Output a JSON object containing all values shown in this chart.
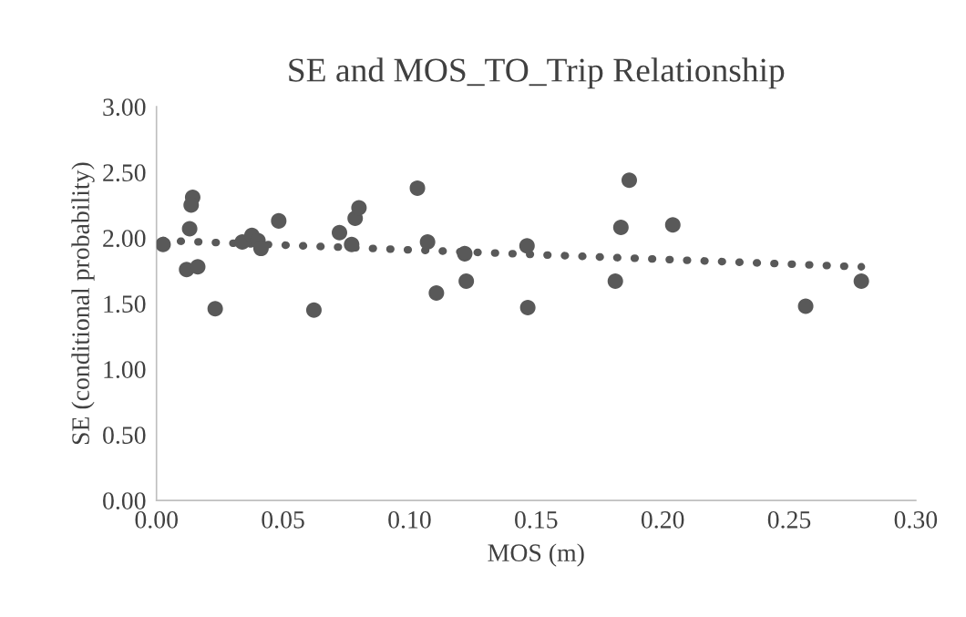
{
  "chart_data": {
    "type": "scatter",
    "title": "SE and MOS_TO_Trip Relationship",
    "xlabel": "MOS (m)",
    "ylabel": "SE (conditional probability)",
    "xlim": [
      0,
      0.3
    ],
    "xticks": [
      {
        "value": 0,
        "label": "0.00"
      },
      {
        "value": 0.05,
        "label": "0.05"
      },
      {
        "value": 0.1,
        "label": "0.10"
      },
      {
        "value": 0.15,
        "label": "0.15"
      },
      {
        "value": 0.2,
        "label": "0.20"
      },
      {
        "value": 0.25,
        "label": "0.25"
      },
      {
        "value": 0.3,
        "label": "0.30"
      }
    ],
    "ylim": [
      0,
      3
    ],
    "yticks": [
      {
        "value": 0,
        "label": "0.00"
      },
      {
        "value": 0.5,
        "label": "0.50"
      },
      {
        "value": 1,
        "label": "1.00"
      },
      {
        "value": 1.5,
        "label": "1.50"
      },
      {
        "value": 2,
        "label": "2.00"
      },
      {
        "value": 2.5,
        "label": "2.50"
      },
      {
        "value": 3,
        "label": "3.00"
      }
    ],
    "grid": false,
    "legend": false,
    "series": [
      {
        "color": "#595959",
        "marker": "circle",
        "x": [
          0.0026,
          0.0143,
          0.0137,
          0.0131,
          0.0119,
          0.0163,
          0.0232,
          0.0339,
          0.0377,
          0.0401,
          0.0413,
          0.0483,
          0.0622,
          0.0723,
          0.0771,
          0.0785,
          0.08,
          0.1031,
          0.1071,
          0.1106,
          0.1218,
          0.1224,
          0.1464,
          0.1467,
          0.1813,
          0.1835,
          0.1868,
          0.204,
          0.2565,
          0.2785
        ],
        "values": [
          1.95,
          2.31,
          2.25,
          2.07,
          1.76,
          1.78,
          1.46,
          1.97,
          2.02,
          1.98,
          1.92,
          2.13,
          1.45,
          2.04,
          1.95,
          2.15,
          2.23,
          2.38,
          1.97,
          1.58,
          1.88,
          1.67,
          1.94,
          1.47,
          1.67,
          2.08,
          2.44,
          2.1,
          1.48,
          1.67
        ]
      },
      {
        "type": "line",
        "color": "#595959",
        "marker": "none",
        "line_style": "dotted",
        "x": [
          0.0026,
          0.2785
        ],
        "values": [
          1.98,
          1.78
        ]
      }
    ]
  }
}
